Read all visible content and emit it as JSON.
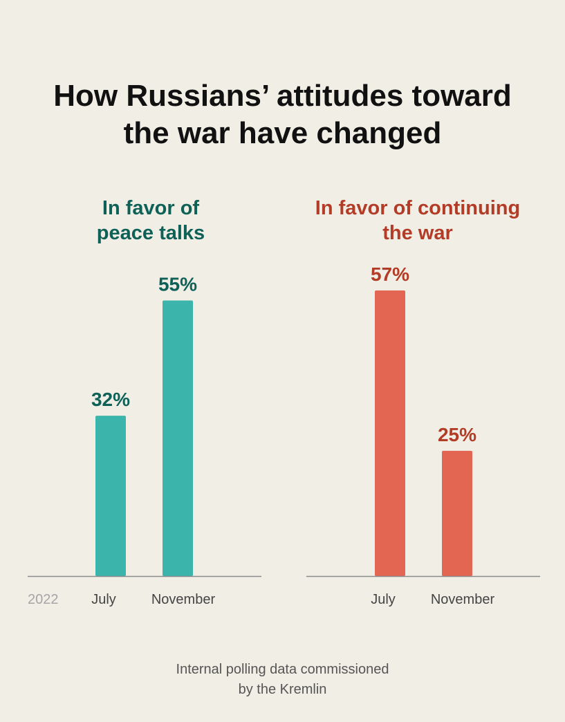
{
  "title": {
    "line1": "How Russians’ attitudes toward",
    "line2": "the war have changed"
  },
  "year_label": "2022",
  "footnote": {
    "line1": "Internal polling data commissioned",
    "line2": "by the Kremlin"
  },
  "colors": {
    "peace_bar": "#3bb4ac",
    "peace_text": "#0e6157",
    "war_bar": "#e36652",
    "war_text": "#b33c26",
    "axis": "#8a8a8a",
    "tick_label": "#444444",
    "year_label": "#a5a5a5"
  },
  "chart_data": [
    {
      "type": "bar",
      "title_lines": [
        "In favor of",
        "peace talks"
      ],
      "categories": [
        "July",
        "November"
      ],
      "values": [
        32,
        55
      ],
      "labels": [
        "32%",
        "55%"
      ],
      "ylim": [
        0,
        57
      ],
      "color_key": "peace"
    },
    {
      "type": "bar",
      "title_lines": [
        "In favor of continuing",
        "the war"
      ],
      "categories": [
        "July",
        "November"
      ],
      "values": [
        57,
        25
      ],
      "labels": [
        "57%",
        "25%"
      ],
      "ylim": [
        0,
        57
      ],
      "color_key": "war"
    }
  ]
}
